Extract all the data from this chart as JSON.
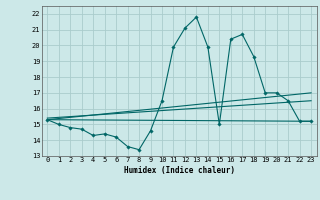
{
  "title": "",
  "xlabel": "Humidex (Indice chaleur)",
  "bg_color": "#cce8e8",
  "grid_color": "#aacccc",
  "line_color": "#006666",
  "xlim": [
    -0.5,
    23.5
  ],
  "ylim": [
    13,
    22.5
  ],
  "yticks": [
    13,
    14,
    15,
    16,
    17,
    18,
    19,
    20,
    21,
    22
  ],
  "xticks": [
    0,
    1,
    2,
    3,
    4,
    5,
    6,
    7,
    8,
    9,
    10,
    11,
    12,
    13,
    14,
    15,
    16,
    17,
    18,
    19,
    20,
    21,
    22,
    23
  ],
  "main_line_x": [
    0,
    1,
    2,
    3,
    4,
    5,
    6,
    7,
    8,
    9,
    10,
    11,
    12,
    13,
    14,
    15,
    16,
    17,
    18,
    19,
    20,
    21,
    22,
    23
  ],
  "main_line_y": [
    15.3,
    15.0,
    14.8,
    14.7,
    14.3,
    14.4,
    14.2,
    13.6,
    13.4,
    14.6,
    16.5,
    19.9,
    21.1,
    21.8,
    19.9,
    15.0,
    20.4,
    20.7,
    19.3,
    17.0,
    17.0,
    16.5,
    15.2,
    15.2
  ],
  "trend1_x": [
    0,
    23
  ],
  "trend1_y": [
    15.3,
    17.0
  ],
  "trend2_x": [
    0,
    23
  ],
  "trend2_y": [
    15.3,
    15.2
  ],
  "trend3_x": [
    0,
    23
  ],
  "trend3_y": [
    15.4,
    16.5
  ]
}
